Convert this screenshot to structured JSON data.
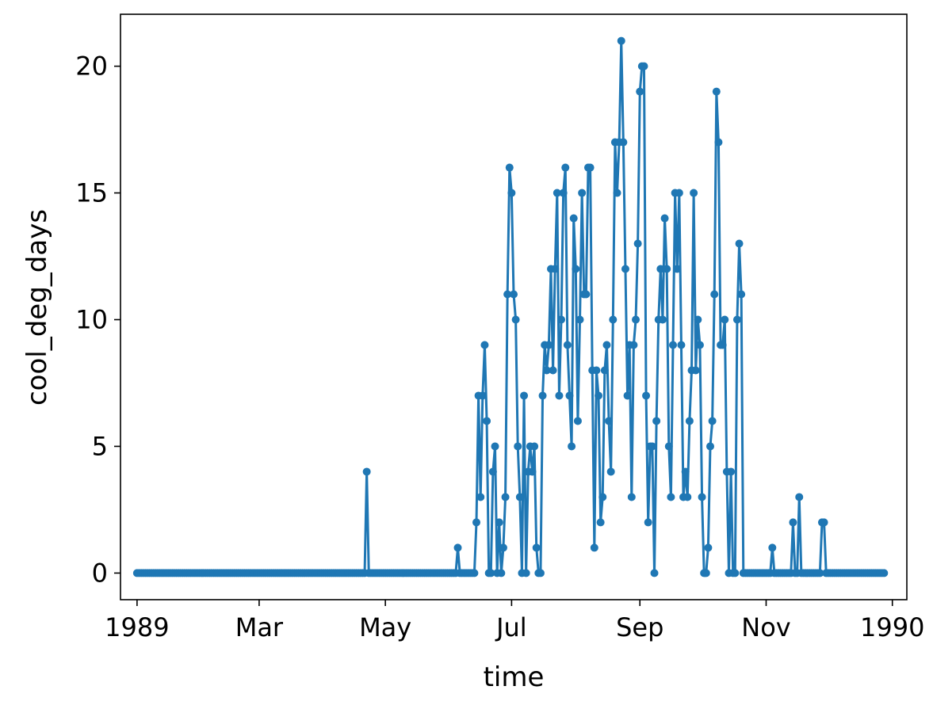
{
  "chart_data": {
    "type": "line",
    "title": "",
    "xlabel": "time",
    "ylabel": "cool_deg_days",
    "x_start": "1989-01-01",
    "x_end": "1989-12-31",
    "xlim": [
      "1988-12-24",
      "1990-01-08"
    ],
    "ylim": [
      -1.05,
      22.05
    ],
    "x_ticks": [
      {
        "date": "1989-01-01",
        "label": "1989"
      },
      {
        "date": "1989-03-01",
        "label": "Mar"
      },
      {
        "date": "1989-05-01",
        "label": "May"
      },
      {
        "date": "1989-07-01",
        "label": "Jul"
      },
      {
        "date": "1989-09-01",
        "label": "Sep"
      },
      {
        "date": "1989-11-01",
        "label": "Nov"
      },
      {
        "date": "1990-01-01",
        "label": "1990"
      }
    ],
    "y_ticks": [
      0,
      5,
      10,
      15,
      20
    ],
    "grid": false,
    "legend": "none",
    "series": [
      {
        "color": "#1f77b4",
        "marker": "circle",
        "values": [
          0,
          0,
          0,
          0,
          0,
          0,
          0,
          0,
          0,
          0,
          0,
          0,
          0,
          0,
          0,
          0,
          0,
          0,
          0,
          0,
          0,
          0,
          0,
          0,
          0,
          0,
          0,
          0,
          0,
          0,
          0,
          0,
          0,
          0,
          0,
          0,
          0,
          0,
          0,
          0,
          0,
          0,
          0,
          0,
          0,
          0,
          0,
          0,
          0,
          0,
          0,
          0,
          0,
          0,
          0,
          0,
          0,
          0,
          0,
          0,
          0,
          0,
          0,
          0,
          0,
          0,
          0,
          0,
          0,
          0,
          0,
          0,
          0,
          0,
          0,
          0,
          0,
          0,
          0,
          0,
          0,
          0,
          0,
          0,
          0,
          0,
          0,
          0,
          0,
          0,
          0,
          0,
          0,
          0,
          0,
          0,
          0,
          0,
          0,
          0,
          0,
          0,
          0,
          0,
          0,
          0,
          0,
          0,
          0,
          0,
          0,
          4,
          0,
          0,
          0,
          0,
          0,
          0,
          0,
          0,
          0,
          0,
          0,
          0,
          0,
          0,
          0,
          0,
          0,
          0,
          0,
          0,
          0,
          0,
          0,
          0,
          0,
          0,
          0,
          0,
          0,
          0,
          0,
          0,
          0,
          0,
          0,
          0,
          0,
          0,
          0,
          0,
          0,
          0,
          0,
          1,
          0,
          0,
          0,
          0,
          0,
          0,
          0,
          0,
          2,
          7,
          3,
          7,
          9,
          6,
          0,
          0,
          4,
          5,
          0,
          2,
          0,
          1,
          3,
          11,
          16,
          15,
          11,
          10,
          5,
          3,
          0,
          7,
          0,
          4,
          5,
          4,
          5,
          1,
          0,
          0,
          7,
          9,
          8,
          9,
          12,
          8,
          12,
          15,
          7,
          10,
          15,
          16,
          9,
          7,
          5,
          14,
          12,
          6,
          10,
          15,
          11,
          11,
          16,
          16,
          8,
          1,
          8,
          7,
          2,
          3,
          8,
          9,
          6,
          4,
          10,
          17,
          15,
          17,
          21,
          17,
          12,
          7,
          9,
          3,
          9,
          10,
          13,
          19,
          20,
          20,
          7,
          2,
          5,
          5,
          0,
          6,
          10,
          12,
          10,
          14,
          12,
          5,
          3,
          9,
          15,
          12,
          15,
          9,
          3,
          4,
          3,
          6,
          8,
          15,
          8,
          10,
          9,
          3,
          0,
          0,
          1,
          5,
          6,
          11,
          19,
          17,
          9,
          9,
          10,
          4,
          0,
          4,
          0,
          0,
          10,
          13,
          11,
          0,
          0,
          0,
          0,
          0,
          0,
          0,
          0,
          0,
          0,
          0,
          0,
          0,
          0,
          1,
          0,
          0,
          0,
          0,
          0,
          0,
          0,
          0,
          0,
          2,
          0,
          0,
          3,
          0,
          0,
          0,
          0,
          0,
          0,
          0,
          0,
          0,
          0,
          2,
          2,
          0,
          0,
          0,
          0,
          0,
          0,
          0,
          0,
          0,
          0,
          0,
          0,
          0,
          0,
          0,
          0,
          0,
          0,
          0,
          0,
          0,
          0,
          0,
          0,
          0,
          0,
          0,
          0,
          0
        ]
      }
    ]
  }
}
